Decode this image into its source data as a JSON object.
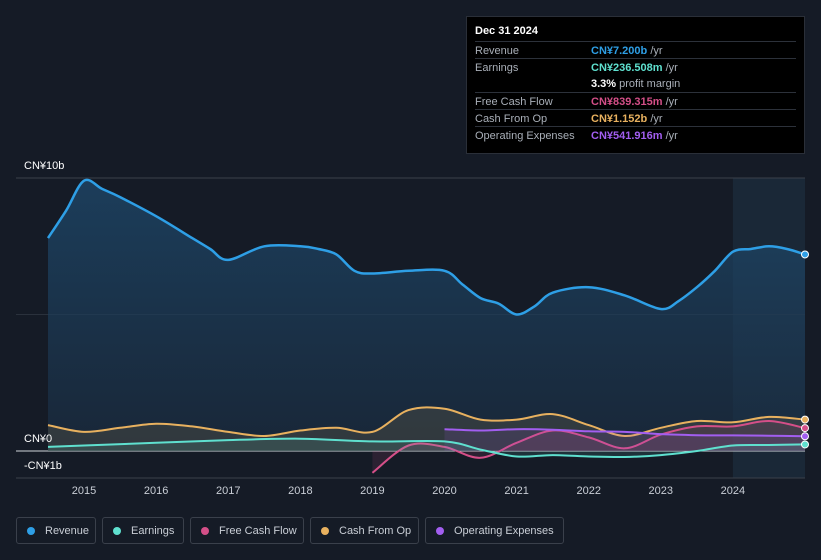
{
  "chart_data": {
    "type": "area",
    "y_axis_labels": {
      "top": "CN¥10b",
      "zero": "CN¥0",
      "bottom": "-CN¥1b"
    },
    "ylim": [
      -1,
      10
    ],
    "x_ticks": [
      "2015",
      "2016",
      "2017",
      "2018",
      "2019",
      "2020",
      "2021",
      "2022",
      "2023",
      "2024"
    ],
    "series": [
      {
        "name": "Revenue",
        "color": "#2e9fe6",
        "x": [
          2014.5,
          2014.75,
          2015.0,
          2015.25,
          2015.5,
          2016.0,
          2016.5,
          2016.75,
          2017.0,
          2017.5,
          2018.0,
          2018.25,
          2018.5,
          2018.75,
          2019.0,
          2019.5,
          2020.0,
          2020.25,
          2020.5,
          2020.75,
          2021.0,
          2021.25,
          2021.5,
          2022.0,
          2022.5,
          2023.0,
          2023.25,
          2023.5,
          2023.75,
          2024.0,
          2024.25,
          2024.5,
          2024.75,
          2025.0
        ],
        "values": [
          7.8,
          8.8,
          9.9,
          9.6,
          9.3,
          8.6,
          7.8,
          7.4,
          7.0,
          7.5,
          7.5,
          7.4,
          7.2,
          6.6,
          6.5,
          6.6,
          6.6,
          6.1,
          5.6,
          5.4,
          5.0,
          5.3,
          5.8,
          6.0,
          5.7,
          5.2,
          5.5,
          6.0,
          6.6,
          7.3,
          7.4,
          7.5,
          7.4,
          7.2
        ]
      },
      {
        "name": "Earnings",
        "color": "#5fe0cf",
        "x": [
          2014.5,
          2015.0,
          2016.0,
          2017.0,
          2018.0,
          2019.0,
          2020.0,
          2020.5,
          2021.0,
          2021.5,
          2022.0,
          2022.5,
          2023.0,
          2023.5,
          2024.0,
          2024.5,
          2025.0
        ],
        "values": [
          0.15,
          0.2,
          0.3,
          0.4,
          0.45,
          0.35,
          0.35,
          0.05,
          -0.2,
          -0.15,
          -0.2,
          -0.22,
          -0.15,
          0.0,
          0.2,
          0.22,
          0.24
        ]
      },
      {
        "name": "Free Cash Flow",
        "color": "#d44f88",
        "x": [
          2019.0,
          2019.5,
          2020.0,
          2020.5,
          2021.0,
          2021.5,
          2022.0,
          2022.5,
          2023.0,
          2023.5,
          2024.0,
          2024.5,
          2025.0
        ],
        "values": [
          -0.8,
          0.2,
          0.15,
          -0.25,
          0.3,
          0.75,
          0.5,
          0.1,
          0.6,
          0.9,
          0.9,
          1.1,
          0.84
        ]
      },
      {
        "name": "Cash From Op",
        "color": "#e8b15f",
        "x": [
          2014.5,
          2015.0,
          2015.5,
          2016.0,
          2016.5,
          2017.0,
          2017.5,
          2018.0,
          2018.5,
          2019.0,
          2019.5,
          2020.0,
          2020.5,
          2021.0,
          2021.5,
          2022.0,
          2022.5,
          2023.0,
          2023.5,
          2024.0,
          2024.5,
          2025.0
        ],
        "values": [
          0.95,
          0.7,
          0.85,
          1.0,
          0.9,
          0.7,
          0.55,
          0.75,
          0.85,
          0.7,
          1.5,
          1.55,
          1.15,
          1.15,
          1.35,
          0.95,
          0.55,
          0.85,
          1.1,
          1.05,
          1.25,
          1.15
        ]
      },
      {
        "name": "Operating Expenses",
        "color": "#a25ef0",
        "x": [
          2020.0,
          2020.5,
          2021.0,
          2021.5,
          2022.0,
          2022.5,
          2023.0,
          2023.5,
          2024.0,
          2024.5,
          2025.0
        ],
        "values": [
          0.8,
          0.75,
          0.8,
          0.78,
          0.72,
          0.7,
          0.62,
          0.58,
          0.57,
          0.56,
          0.54
        ]
      }
    ]
  },
  "tooltip": {
    "date": "Dec 31 2024",
    "rows": [
      {
        "label": "Revenue",
        "value": "CN¥7.200b",
        "unit": "/yr",
        "color": "#2e9fe6"
      },
      {
        "label": "Earnings",
        "value": "CN¥236.508m",
        "unit": "/yr",
        "color": "#5fe0cf"
      },
      {
        "label": "",
        "value": "3.3%",
        "unit": "profit margin",
        "color": "#ffffff"
      },
      {
        "label": "Free Cash Flow",
        "value": "CN¥839.315m",
        "unit": "/yr",
        "color": "#d44f88"
      },
      {
        "label": "Cash From Op",
        "value": "CN¥1.152b",
        "unit": "/yr",
        "color": "#e8b15f"
      },
      {
        "label": "Operating Expenses",
        "value": "CN¥541.916m",
        "unit": "/yr",
        "color": "#a25ef0"
      }
    ]
  },
  "legend": [
    {
      "label": "Revenue",
      "color": "#2e9fe6"
    },
    {
      "label": "Earnings",
      "color": "#5fe0cf"
    },
    {
      "label": "Free Cash Flow",
      "color": "#d44f88"
    },
    {
      "label": "Cash From Op",
      "color": "#e8b15f"
    },
    {
      "label": "Operating Expenses",
      "color": "#a25ef0"
    }
  ]
}
